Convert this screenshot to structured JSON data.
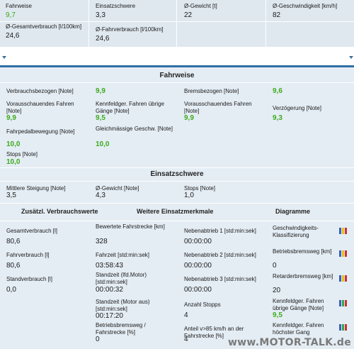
{
  "summary": {
    "fahrweise_label": "Fahrweise",
    "fahrweise_value": "9,7",
    "einsatzschwere_label": "Einsatzschwere",
    "einsatzschwere_value": "3,3",
    "gewicht_label": "Ø-Gewicht [t]",
    "gewicht_value": "22",
    "geschw_label": "Ø-Geschwindigkeit [km/h]",
    "geschw_value": "82",
    "gesamtverbrauch_label": "Ø-Gesamtverbrauch [l/100km]",
    "gesamtverbrauch_value": "24,6",
    "fahrverbrauch_label": "Ø-Fahrverbrauch [l/100km]",
    "fahrverbrauch_value": "24,6"
  },
  "fahrweise": {
    "title": "Fahrweise",
    "verbrauch_label": "Verbrauchsbezogen [Note]",
    "verbrauch_value": "9,9",
    "kennfeld_label": "Kennfeldger. Fahren übrige Gänge [Note]",
    "kennfeld_value": "9,5",
    "brems_label": "Bremsbezogen [Note]",
    "brems_value": "9,6",
    "vorausschauend1_label": "Vorausschauendes Fahren [Note]",
    "vorausschauend1_value": "9,9",
    "gleichmaessig_label": "Gleichmässige Geschw. [Note]",
    "gleichmaessig_value": "10,0",
    "vorausschauend2_label": "Vorausschauendes Fahren [Note]",
    "vorausschauend2_value": "9,9",
    "verzoegerung_label": "Verzögerung [Note]",
    "verzoegerung_value": "9,3",
    "pedal_label": "Fahrpedalbewegung [Note]",
    "pedal_value": "10,0",
    "stops_label": "Stops [Note]",
    "stops_value": "10,0"
  },
  "einsatzschwere": {
    "title": "Einsatzschwere",
    "steigung_label": "Mittlere Steigung [Note]",
    "steigung_value": "3,5",
    "gewicht_label": "Ø-Gewicht [Note]",
    "gewicht_value": "4,3",
    "stops_label": "Stops [Note]",
    "stops_value": "1,0"
  },
  "headers": {
    "verbrauch": "Zusätzl. Verbrauchswerte",
    "einsatz": "Weitere Einsatzmerkmale",
    "diagramme": "Diagramme"
  },
  "verbrauchswerte": [
    {
      "label": "Gesamtverbrauch [l]",
      "value": "80,6"
    },
    {
      "label": "Fahrverbrauch [l]",
      "value": "80,6"
    },
    {
      "label": "Standverbrauch [l]",
      "value": "0,0"
    }
  ],
  "einsatz_col1": [
    {
      "label": "Bewertete Fahrstrecke [km]",
      "value": "328"
    },
    {
      "label": "Fahrzeit [std:min:sek]",
      "value": "03:58:43"
    },
    {
      "label": "Standzeit (lfd.Motor) [std:min:sek]",
      "value": "00:00:32"
    },
    {
      "label": "Standzeit (Motor aus) [std:min:sek]",
      "value": "00:17:20"
    },
    {
      "label": "Betriebsbremsweg / Fahrstrecke [%]",
      "value": "0"
    }
  ],
  "einsatz_col2": [
    {
      "label": "Nebenabtrieb 1 [std:min:sek]",
      "value": "00:00:00"
    },
    {
      "label": "Nebenabtrieb 2 [std:min:sek]",
      "value": "00:00:00"
    },
    {
      "label": "Nebenabtrieb 3 [std:min:sek]",
      "value": "00:00:00"
    },
    {
      "label": "Anzahl Stopps",
      "value": "4"
    },
    {
      "label": "Anteil v>85 km/h an der Fahrstrecke [%]",
      "value": "4"
    }
  ],
  "diagramme": [
    {
      "label": "Geschwindigkeits-Klassifizierung",
      "value": ""
    },
    {
      "label": "Betriebsbremsweg [km]",
      "value": "0"
    },
    {
      "label": "Retarderbremsweg [km]",
      "value": "20"
    },
    {
      "label": "Kennfeldger. Fahren übrige Gänge [Note]",
      "value": "9,5"
    },
    {
      "label": "Kennfeldger. Fahren höchster Gang",
      "value": ""
    }
  ],
  "watermark": "www.MOTOR-TALK.de",
  "colors": {
    "accent_green": "#3daa1c",
    "blue_bar": "#2f6fa3",
    "panel_bg": "#e4edf4"
  }
}
